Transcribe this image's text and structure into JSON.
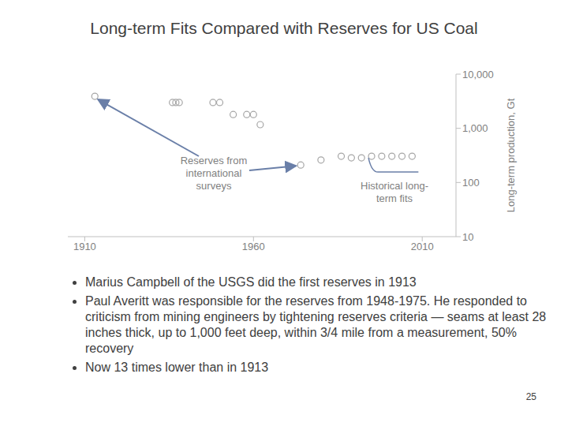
{
  "chart_data": {
    "type": "scatter",
    "title": "Long-term Fits Compared with Reserves for US Coal",
    "y_label": "Long-term production, Gt",
    "log": "y",
    "xlim": [
      1905,
      2020
    ],
    "xticks": [
      1910,
      1960,
      2010
    ],
    "ylim": [
      10,
      10000
    ],
    "yticks": [
      10,
      100,
      {
        "value": 1000,
        "label": "1,000"
      },
      {
        "value": 10000,
        "label": "10,000"
      }
    ],
    "series": [
      {
        "name": "Reserves from international surveys",
        "type": "scatter",
        "marker": "circle",
        "color": "#a6a6a6",
        "x": [
          1913,
          1936,
          1937,
          1938,
          1948,
          1950,
          1954,
          1958,
          1960,
          1962,
          1974,
          1980
        ],
        "values": [
          3900,
          3000,
          3000,
          3000,
          3000,
          3000,
          1800,
          1800,
          1800,
          1170,
          210,
          260
        ]
      },
      {
        "name": "Historical long-term fits",
        "type": "scatter",
        "marker": "circle",
        "color": "#a6a6a6",
        "x": [
          1986,
          1989,
          1992,
          1995,
          1998,
          2001,
          2004,
          2007
        ],
        "values": [
          305,
          285,
          285,
          305,
          305,
          305,
          305,
          305
        ]
      }
    ]
  },
  "bullets": [
    "Marius Campbell of the USGS did the first reserves in 1913",
    "Paul Averitt was responsible for the reserves from 1948-1975.  He responded to criticism from mining engineers by tightening reserves criteria  — seams at least 28 inches thick, up to 1,000 feet deep, within 3/4 mile from a measurement, 50% recovery",
    "Now 13 times lower than in 1913"
  ],
  "page_number": 25
}
